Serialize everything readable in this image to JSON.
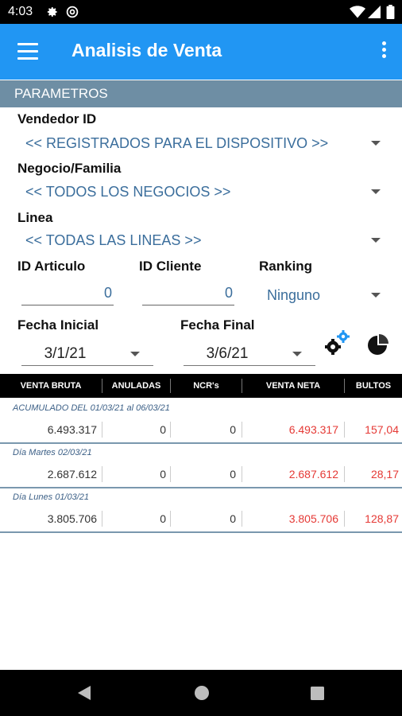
{
  "status": {
    "time": "4:03"
  },
  "app_bar": {
    "title": "Analisis de Venta"
  },
  "section": {
    "title": "PARAMETROS"
  },
  "filters": {
    "vendedor_label": "Vendedor ID",
    "vendedor_value": "<< REGISTRADOS PARA EL DISPOSITIVO >>",
    "negocio_label": "Negocio/Familia",
    "negocio_value": "<< TODOS LOS NEGOCIOS >>",
    "linea_label": "Linea",
    "linea_value": "<< TODAS LAS LINEAS >>",
    "articulo_label": "ID Articulo",
    "articulo_value": "0",
    "cliente_label": "ID Cliente",
    "cliente_value": "0",
    "ranking_label": "Ranking",
    "ranking_value": "Ninguno",
    "fecha_inicial_label": "Fecha Inicial",
    "fecha_inicial_value": "3/1/21",
    "fecha_final_label": "Fecha Final",
    "fecha_final_value": "3/6/21"
  },
  "table": {
    "headers": [
      "VENTA BRUTA",
      "ANULADAS",
      "NCR's",
      "VENTA NETA",
      "BULTOS"
    ],
    "groups": [
      {
        "title": "ACUMULADO DEL 01/03/21 al 06/03/21",
        "values": [
          "6.493.317",
          "0",
          "0",
          "6.493.317",
          "157,04"
        ]
      },
      {
        "title": "Día Martes 02/03/21",
        "values": [
          "2.687.612",
          "0",
          "0",
          "2.687.612",
          "28,17"
        ]
      },
      {
        "title": "Día Lunes 01/03/21",
        "values": [
          "3.805.706",
          "0",
          "0",
          "3.805.706",
          "128,87"
        ]
      }
    ]
  },
  "icons": {
    "status": [
      "gear-icon",
      "at-icon",
      "wifi-icon",
      "signal-icon",
      "battery-icon"
    ],
    "app_bar": [
      "menu-icon",
      "more-vert-icon"
    ],
    "actions": [
      "gears-settings-icon",
      "pie-chart-icon"
    ],
    "nav": [
      "back-icon",
      "home-icon",
      "recents-icon"
    ]
  },
  "colors": {
    "app_bar": "#2196f3",
    "section_header": "#6e8ea4",
    "accent_value": "#3b6e9c",
    "negative_red": "#e53935"
  }
}
